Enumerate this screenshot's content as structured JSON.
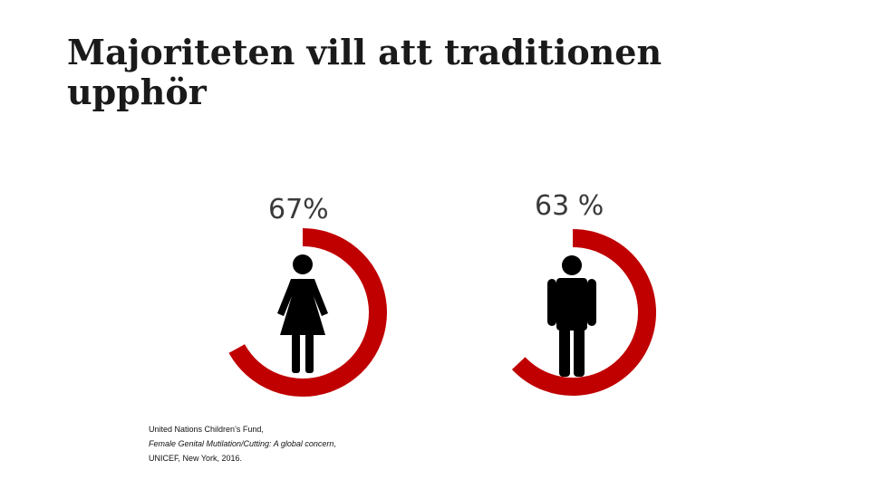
{
  "title": "Majoriteten vill att traditionen upphör",
  "chart_data": {
    "type": "pie",
    "categories": [
      "Kvinnor",
      "Män"
    ],
    "values": [
      67,
      63
    ],
    "labels": [
      "67%",
      "63 %"
    ],
    "ring_color": "#c00000",
    "icon_color": "#000000"
  },
  "source": {
    "line1": "United Nations Children’s Fund,",
    "line2": "Female Genital Mutilation/Cutting: A global concern,",
    "line3": "UNICEF, New York, 2016."
  }
}
